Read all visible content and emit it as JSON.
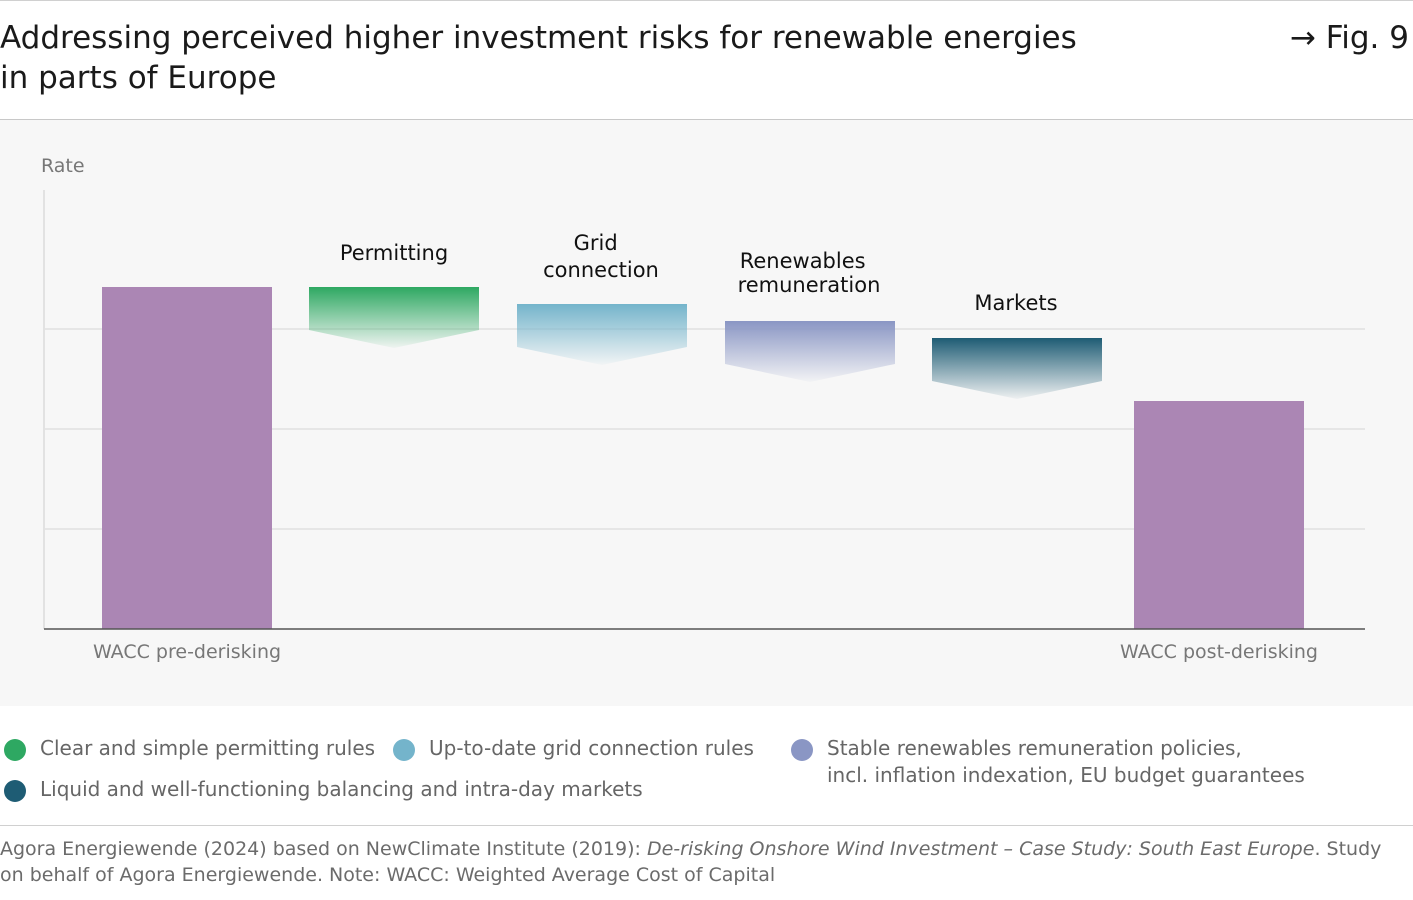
{
  "header": {
    "title_line1": "Addressing perceived higher investment risks for renewable energies",
    "title_line2": "in parts of Europe",
    "figure_label": "→ Fig. 9"
  },
  "colors": {
    "wacc_bar": "#ab86b4",
    "permitting": "#2ea862",
    "grid_connection": "#74b4cb",
    "renewables_remuneration": "#8a96c4",
    "markets": "#1e5c74",
    "panel_bg": "#f7f7f7",
    "gridline": "#e6e6e6"
  },
  "chart_data": {
    "type": "bar",
    "subtype": "waterfall",
    "ylabel": "Rate",
    "ylim": [
      0,
      4.2
    ],
    "grid": true,
    "yticks_shown": false,
    "categories": [
      "WACC pre-derisking",
      "Permitting",
      "Grid connection",
      "Renewables remuneration",
      "Markets",
      "WACC post-derisking"
    ],
    "bars": [
      {
        "name": "WACC pre-derisking",
        "kind": "total",
        "start": 0,
        "end": 3.42,
        "label": "WACC pre-derisking",
        "color": "#ab86b4"
      },
      {
        "name": "Permitting",
        "kind": "decrease",
        "start": 3.42,
        "end": 2.99,
        "top_label": "Permitting",
        "color": "#2ea862"
      },
      {
        "name": "Grid connection",
        "kind": "decrease",
        "start": 3.25,
        "end": 2.82,
        "top_label": "Grid connection",
        "color": "#74b4cb"
      },
      {
        "name": "Renewables remuneration",
        "kind": "decrease",
        "start": 3.08,
        "end": 2.65,
        "top_label": "Renewables remuneration",
        "color": "#8a96c4"
      },
      {
        "name": "Markets",
        "kind": "decrease",
        "start": 2.91,
        "end": 2.48,
        "top_label": "Markets",
        "color": "#1e5c74"
      },
      {
        "name": "WACC post-derisking",
        "kind": "total",
        "start": 0,
        "end": 2.28,
        "label": "WACC post-derisking",
        "color": "#ab86b4"
      }
    ]
  },
  "chart_labels": {
    "ylabel": "Rate",
    "pre": "WACC pre-derisking",
    "post": "WACC post-derisking",
    "permitting": "Permitting",
    "grid_line1": "Grid",
    "grid_line2": "connection",
    "remun_line1": "Renewables",
    "remun_line2": "remuneration",
    "markets": "Markets"
  },
  "legend": {
    "permitting": "Clear and simple permitting rules",
    "grid": "Up-to-date grid connection rules",
    "remun_line1": "Stable renewables remuneration policies,",
    "remun_line2": "incl. inflation indexation, EU budget guarantees",
    "markets": "Liquid and well-functioning balancing and intra-day markets"
  },
  "source": {
    "prefix": "Agora Energiewende (2024) based on NewClimate Institute (2019): ",
    "italic": "De-risking Onshore Wind Investment – Case Study: South East Europe",
    "suffix": ". Study on behalf of Agora Energiewende. Note: WACC: Weighted Average Cost of Capital"
  }
}
